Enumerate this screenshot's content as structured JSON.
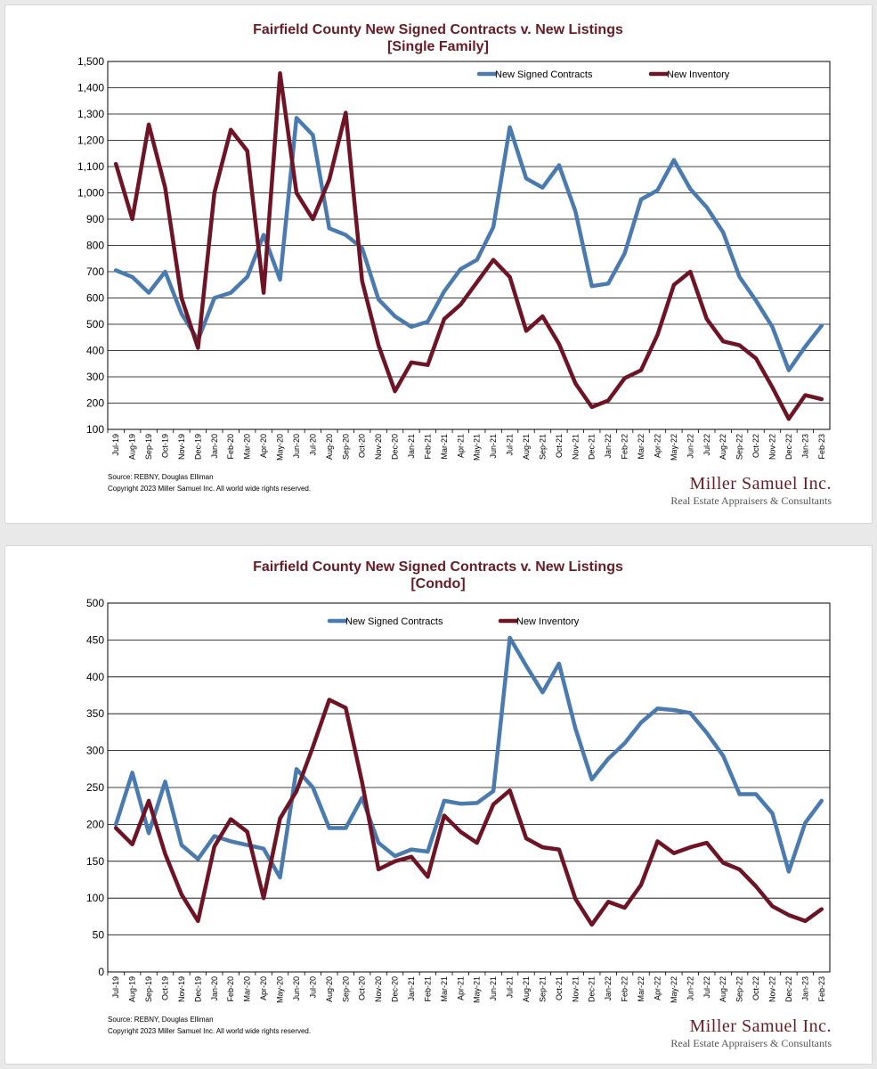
{
  "colors": {
    "title": "#6a1b24",
    "contracts": "#4a7bb0",
    "inventory": "#6e1424",
    "grid": "#000000",
    "brand": "#6a1b24",
    "tagline": "#555555"
  },
  "footer": {
    "source": "Source: REBNY, Douglas Elliman",
    "copyright": "Copyright 2023 Miller Samuel Inc.  All world wide rights reserved.",
    "brand_name": "Miller Samuel Inc.",
    "brand_tagline": "Real Estate Appraisers & Consultants"
  },
  "chart_data": [
    {
      "type": "line",
      "title": "Fairfield County New Signed Contracts v. New Listings",
      "subtitle": "[Single Family]",
      "ylim": [
        100,
        1500
      ],
      "y_ticks": [
        "100",
        "200",
        "300",
        "400",
        "500",
        "600",
        "700",
        "800",
        "900",
        "1,000",
        "1,100",
        "1,200",
        "1,300",
        "1,400",
        "1,500"
      ],
      "grid": true,
      "legend": "top-right, inside plot",
      "categories": [
        "Jul-19",
        "Aug-19",
        "Sep-19",
        "Oct-19",
        "Nov-19",
        "Dec-19",
        "Jan-20",
        "Feb-20",
        "Mar-20",
        "Apr-20",
        "May-20",
        "Jun-20",
        "Jul-20",
        "Aug-20",
        "Sep-20",
        "Oct-20",
        "Nov-20",
        "Dec-20",
        "Jan-21",
        "Feb-21",
        "Mar-21",
        "Apr-21",
        "May-21",
        "Jun-21",
        "Jul-21",
        "Aug-21",
        "Sep-21",
        "Oct-21",
        "Nov-21",
        "Dec-21",
        "Jan-22",
        "Feb-22",
        "Mar-22",
        "Apr-22",
        "May-22",
        "Jun-22",
        "Jul-22",
        "Aug-22",
        "Sep-22",
        "Oct-22",
        "Nov-22",
        "Dec-22",
        "Jan-23",
        "Feb-23"
      ],
      "series": [
        {
          "name": "New Signed Contracts",
          "color": "#4a7bb0",
          "values": [
            705,
            680,
            620,
            700,
            540,
            440,
            600,
            620,
            680,
            840,
            670,
            1285,
            1220,
            865,
            840,
            790,
            595,
            530,
            490,
            510,
            625,
            710,
            745,
            870,
            1250,
            1055,
            1020,
            1105,
            930,
            645,
            655,
            770,
            975,
            1010,
            1125,
            1015,
            945,
            850,
            680,
            590,
            490,
            325,
            415,
            495
          ]
        },
        {
          "name": "New Inventory",
          "color": "#6e1424",
          "values": [
            1110,
            900,
            1260,
            1020,
            600,
            410,
            1000,
            1240,
            1160,
            620,
            1455,
            1000,
            900,
            1050,
            1305,
            665,
            420,
            245,
            355,
            345,
            520,
            575,
            660,
            745,
            680,
            475,
            530,
            425,
            275,
            185,
            210,
            295,
            325,
            460,
            650,
            700,
            520,
            435,
            420,
            370,
            260,
            140,
            230,
            215
          ]
        }
      ]
    },
    {
      "type": "line",
      "title": "Fairfield County New Signed Contracts v. New Listings",
      "subtitle": "[Condo]",
      "ylim": [
        0,
        500
      ],
      "y_ticks": [
        "0",
        "50",
        "100",
        "150",
        "200",
        "250",
        "300",
        "350",
        "400",
        "450",
        "500"
      ],
      "grid": true,
      "legend": "top-center, inside plot",
      "categories": [
        "Jul-19",
        "Aug-19",
        "Sep-19",
        "Oct-19",
        "Nov-19",
        "Dec-19",
        "Jan-20",
        "Feb-20",
        "Mar-20",
        "Apr-20",
        "May-20",
        "Jun-20",
        "Jul-20",
        "Aug-20",
        "Sep-20",
        "Oct-20",
        "Nov-20",
        "Dec-20",
        "Jan-21",
        "Feb-21",
        "Mar-21",
        "Apr-21",
        "May-21",
        "Jun-21",
        "Jul-21",
        "Aug-21",
        "Sep-21",
        "Oct-21",
        "Nov-21",
        "Dec-21",
        "Jan-22",
        "Feb-22",
        "Mar-22",
        "Apr-22",
        "May-22",
        "Jun-22",
        "Jul-22",
        "Aug-22",
        "Sep-22",
        "Oct-22",
        "Nov-22",
        "Dec-22",
        "Jan-23",
        "Feb-23"
      ],
      "series": [
        {
          "name": "New Signed Contracts",
          "color": "#4a7bb0",
          "values": [
            200,
            270,
            188,
            258,
            172,
            153,
            184,
            177,
            172,
            167,
            128,
            275,
            250,
            195,
            195,
            236,
            175,
            157,
            166,
            163,
            232,
            228,
            229,
            245,
            453,
            415,
            379,
            418,
            330,
            261,
            289,
            310,
            338,
            357,
            355,
            351,
            324,
            293,
            241,
            241,
            215,
            136,
            202,
            232
          ]
        },
        {
          "name": "New Inventory",
          "color": "#6e1424",
          "values": [
            195,
            173,
            232,
            160,
            105,
            69,
            170,
            207,
            190,
            100,
            208,
            245,
            305,
            369,
            358,
            257,
            139,
            150,
            156,
            129,
            212,
            190,
            175,
            227,
            246,
            181,
            169,
            166,
            99,
            64,
            95,
            87,
            118,
            177,
            161,
            169,
            175,
            148,
            139,
            116,
            89,
            77,
            69,
            85
          ]
        }
      ]
    }
  ]
}
